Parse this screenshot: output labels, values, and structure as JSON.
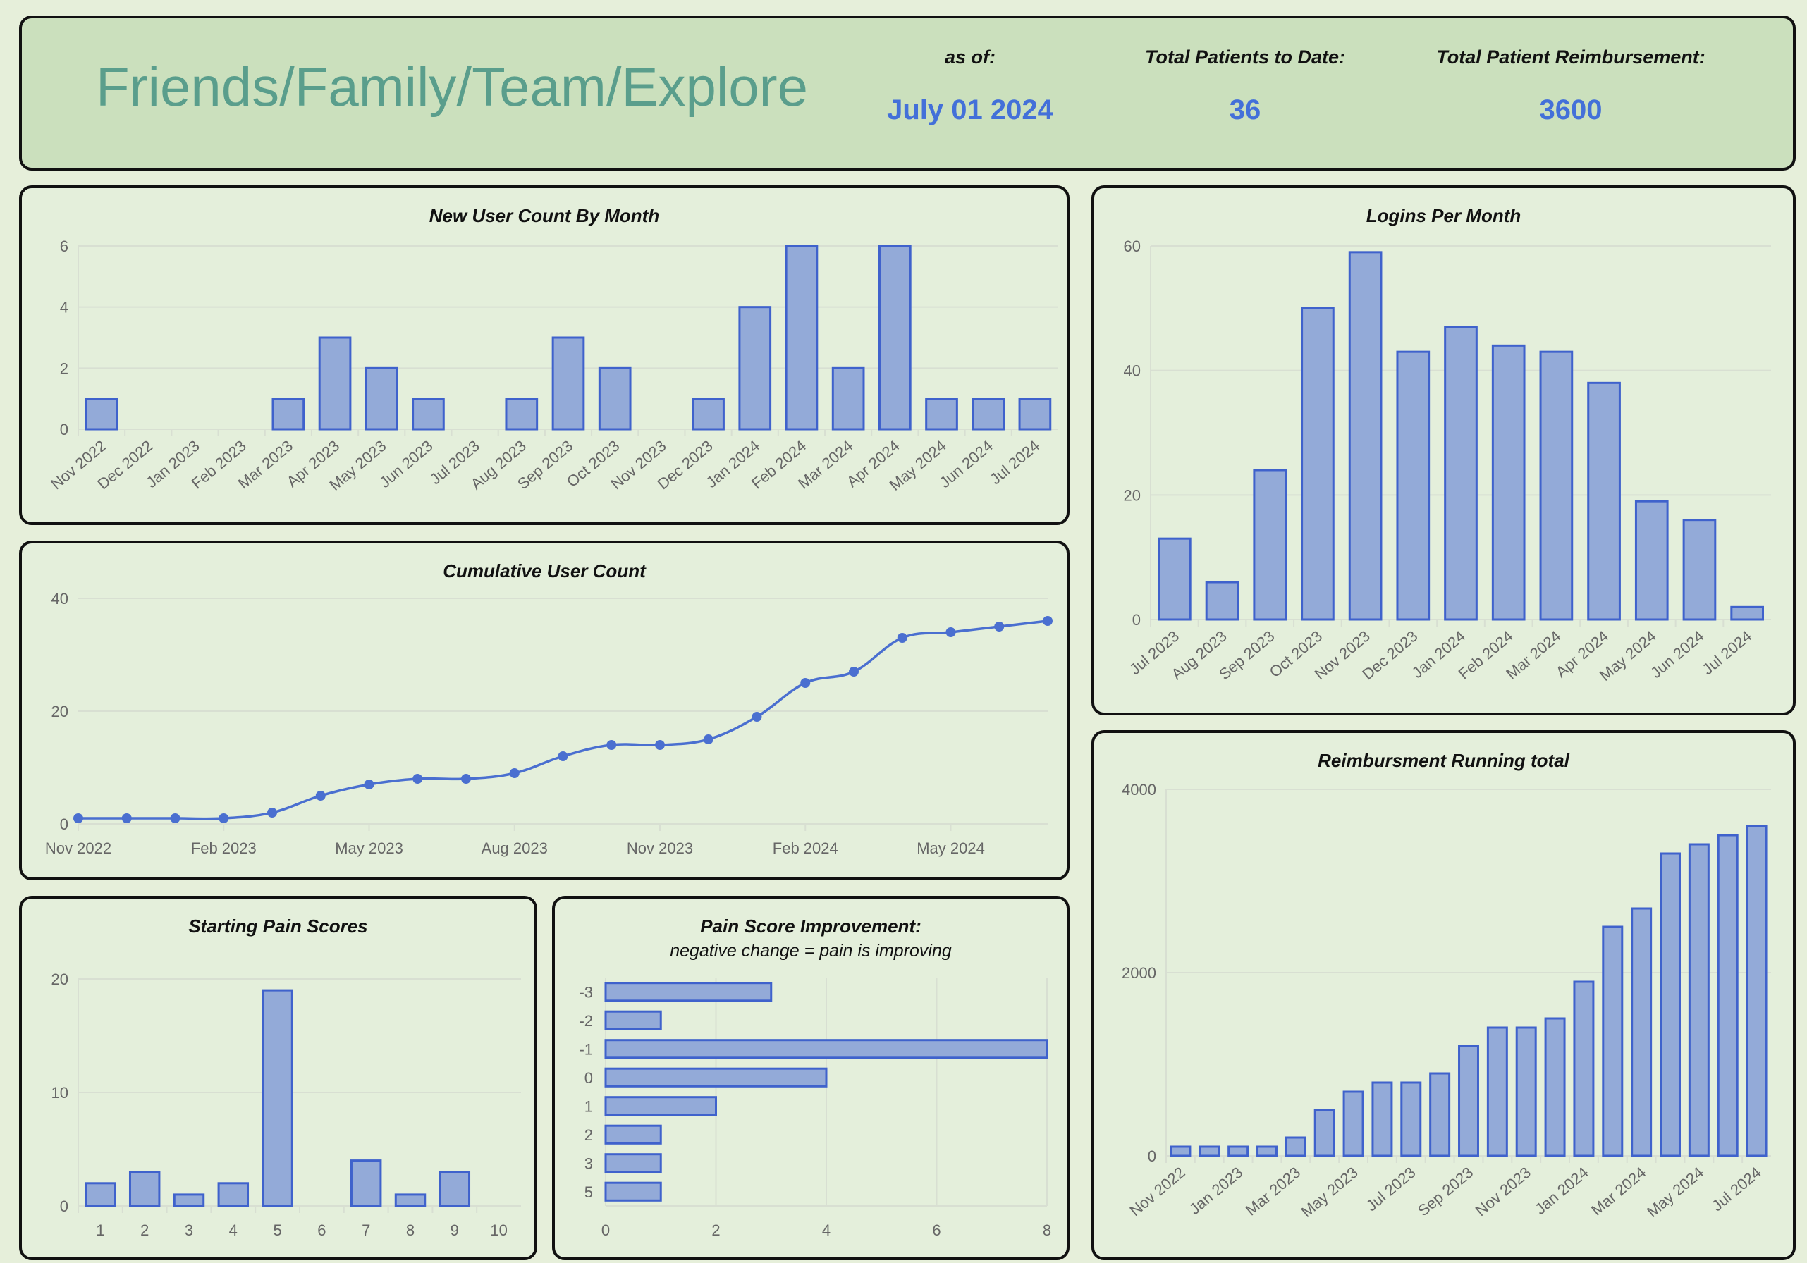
{
  "header": {
    "title": "Friends/Family/Team/Explore",
    "as_of_label": "as of:",
    "as_of_value": "July 01 2024",
    "total_patients_label": "Total Patients to Date:",
    "total_patients_value": "36",
    "total_reimbursement_label": "Total Patient Reimbursement:",
    "total_reimbursement_value": "3600"
  },
  "colors": {
    "bar_fill": "#93aad8",
    "bar_stroke": "#3f62cc",
    "line": "#4a6fd0",
    "grid": "#d8dfd2",
    "title_green": "#5a9e8c",
    "kpi_blue": "#4370d9",
    "background": "#e6efda"
  },
  "chart_data": [
    {
      "id": "new_users",
      "type": "bar",
      "title": "New User Count By Month",
      "categories": [
        "Nov 2022",
        "Dec 2022",
        "Jan 2023",
        "Feb 2023",
        "Mar 2023",
        "Apr 2023",
        "May 2023",
        "Jun 2023",
        "Jul 2023",
        "Aug 2023",
        "Sep 2023",
        "Oct 2023",
        "Nov 2023",
        "Dec 2023",
        "Jan 2024",
        "Feb 2024",
        "Mar 2024",
        "Apr 2024",
        "May 2024",
        "Jun 2024",
        "Jul 2024"
      ],
      "values": [
        1,
        0,
        0,
        0,
        1,
        3,
        2,
        1,
        0,
        1,
        3,
        2,
        0,
        1,
        4,
        6,
        2,
        6,
        1,
        1,
        1
      ],
      "ylim": [
        0,
        6
      ],
      "yticks": [
        0,
        2,
        4,
        6
      ],
      "grid": true
    },
    {
      "id": "logins",
      "type": "bar",
      "title": "Logins Per Month",
      "categories": [
        "Jul 2023",
        "Aug 2023",
        "Sep 2023",
        "Oct 2023",
        "Nov 2023",
        "Dec 2023",
        "Jan 2024",
        "Feb 2024",
        "Mar 2024",
        "Apr 2024",
        "May 2024",
        "Jun 2024",
        "Jul 2024"
      ],
      "values": [
        13,
        6,
        24,
        50,
        59,
        43,
        47,
        44,
        43,
        38,
        19,
        16,
        2
      ],
      "ylim": [
        0,
        60
      ],
      "yticks": [
        0,
        20,
        40,
        60
      ],
      "grid": true
    },
    {
      "id": "cumulative",
      "type": "line",
      "title": "Cumulative User Count",
      "x": [
        "Nov 2022",
        "Dec 2022",
        "Jan 2023",
        "Feb 2023",
        "Mar 2023",
        "Apr 2023",
        "May 2023",
        "Jun 2023",
        "Jul 2023",
        "Aug 2023",
        "Sep 2023",
        "Oct 2023",
        "Nov 2023",
        "Dec 2023",
        "Jan 2024",
        "Feb 2024",
        "Mar 2024",
        "Apr 2024",
        "May 2024",
        "Jun 2024",
        "Jul 2024"
      ],
      "values": [
        1,
        1,
        1,
        1,
        2,
        5,
        7,
        8,
        8,
        9,
        12,
        14,
        14,
        15,
        19,
        25,
        27,
        33,
        34,
        35,
        36
      ],
      "xticks": [
        "Nov 2022",
        "Feb 2023",
        "May 2023",
        "Aug 2023",
        "Nov 2023",
        "Feb 2024",
        "May 2024"
      ],
      "ylim": [
        0,
        40
      ],
      "yticks": [
        0,
        20,
        40
      ],
      "grid": true
    },
    {
      "id": "reimbursement",
      "type": "bar",
      "title": "Reimbursment Running total",
      "categories": [
        "Nov 2022",
        "Dec 2022",
        "Jan 2023",
        "Feb 2023",
        "Mar 2023",
        "Apr 2023",
        "May 2023",
        "Jun 2023",
        "Jul 2023",
        "Aug 2023",
        "Sep 2023",
        "Oct 2023",
        "Nov 2023",
        "Dec 2023",
        "Jan 2024",
        "Feb 2024",
        "Mar 2024",
        "Apr 2024",
        "May 2024",
        "Jun 2024",
        "Jul 2024"
      ],
      "tick_labels": [
        "Nov 2022",
        "",
        "Jan 2023",
        "",
        "Mar 2023",
        "",
        "May 2023",
        "",
        "Jul 2023",
        "",
        "Sep 2023",
        "",
        "Nov 2023",
        "",
        "Jan 2024",
        "",
        "Mar 2024",
        "",
        "May 2024",
        "",
        "Jul 2024"
      ],
      "values": [
        100,
        100,
        100,
        100,
        200,
        500,
        700,
        800,
        800,
        900,
        1200,
        1400,
        1400,
        1500,
        1900,
        2500,
        2700,
        3300,
        3400,
        3500,
        3600
      ],
      "ylim": [
        0,
        4000
      ],
      "yticks": [
        0,
        2000,
        4000
      ],
      "grid": true
    },
    {
      "id": "starting_pain",
      "type": "bar",
      "title": "Starting Pain Scores",
      "categories": [
        "1",
        "2",
        "3",
        "4",
        "5",
        "6",
        "7",
        "8",
        "9",
        "10"
      ],
      "values": [
        2,
        3,
        1,
        2,
        19,
        0,
        4,
        1,
        3,
        0
      ],
      "ylim": [
        0,
        20
      ],
      "yticks": [
        0,
        10,
        20
      ],
      "grid": true
    },
    {
      "id": "pain_improvement",
      "type": "bar",
      "orientation": "horizontal",
      "title": "Pain Score Improvement:",
      "subtitle": "negative change = pain is improving",
      "categories": [
        "-3",
        "-2",
        "-1",
        "0",
        "1",
        "2",
        "3",
        "5"
      ],
      "values": [
        3,
        1,
        8,
        4,
        2,
        1,
        1,
        1
      ],
      "xlim": [
        0,
        8
      ],
      "xticks": [
        0,
        2,
        4,
        6,
        8
      ],
      "grid": true
    }
  ]
}
